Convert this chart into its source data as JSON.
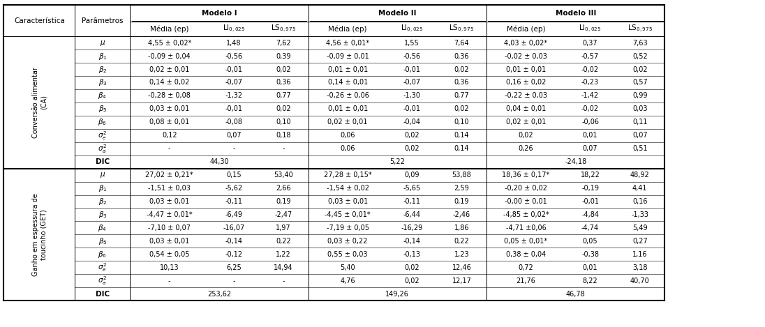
{
  "col0_header": "Característica",
  "col1_header": "Parâmetros",
  "modelo_headers": [
    "Modelo I",
    "Modelo II",
    "Modelo III"
  ],
  "sub_headers": [
    "Média (ep)",
    "LI$_{0,025}$",
    "LS$_{0,975}$"
  ],
  "section1_label": "Conversão alimentar\n(CA)",
  "section2_label": "Ganho em espessura de\ntoucinho (GET)",
  "params": [
    "$\\mu$",
    "$\\beta_1$",
    "$\\beta_2$",
    "$\\beta_3$",
    "$\\beta_4$",
    "$\\beta_5$",
    "$\\beta_6$",
    "$\\sigma^2_e$",
    "$\\sigma^2_a$"
  ],
  "section1_data": [
    [
      "4,55 ± 0,02*",
      "1,48",
      "7,62",
      "4,56 ± 0,01*",
      "1,55",
      "7,64",
      "4,03 ± 0,02*",
      "0,37",
      "7,63"
    ],
    [
      "-0,09 ± 0,04",
      "-0,56",
      "0,39",
      "-0,09 ± 0,01",
      "-0,56",
      "0,36",
      "-0,02 ± 0,03",
      "-0,57",
      "0,52"
    ],
    [
      "0,02 ± 0,01",
      "-0,01",
      "0,02",
      "0,01 ± 0,01",
      "-0,01",
      "0,02",
      "0,01 ± 0,01",
      "-0,02",
      "0,02"
    ],
    [
      "0,14 ± 0,02",
      "-0,07",
      "0,36",
      "0,14 ± 0,01",
      "-0,07",
      "0,36",
      "0,16 ± 0,02",
      "-0,23",
      "0,57"
    ],
    [
      "-0,28 ± 0,08",
      "-1,32",
      "0,77",
      "-0,26 ± 0,06",
      "-1,30",
      "0,77",
      "-0,22 ± 0,03",
      "-1,42",
      "0,99"
    ],
    [
      "0,03 ± 0,01",
      "-0,01",
      "0,02",
      "0,01 ± 0,01",
      "-0,01",
      "0,02",
      "0,04 ± 0,01",
      "-0,02",
      "0,03"
    ],
    [
      "0,08 ± 0,01",
      "-0,08",
      "0,10",
      "0,02 ± 0,01",
      "-0,04",
      "0,10",
      "0,02 ± 0,01",
      "-0,06",
      "0,11"
    ],
    [
      "0,12",
      "0,07",
      "0,18",
      "0,06",
      "0,02",
      "0,14",
      "0,02",
      "0,01",
      "0,07"
    ],
    [
      "-",
      "-",
      "-",
      "0,06",
      "0,02",
      "0,14",
      "0,26",
      "0,07",
      "0,51"
    ]
  ],
  "section1_dic": [
    "44,30",
    "5,22",
    "-24,18"
  ],
  "section2_data": [
    [
      "27,02 ± 0,21*",
      "0,15",
      "53,40",
      "27,28 ± 0,15*",
      "0,09",
      "53,88",
      "18,36 ± 0,17*",
      "18,22",
      "48,92"
    ],
    [
      "-1,51 ± 0,03",
      "-5,62",
      "2,66",
      "-1,54 ± 0,02",
      "-5,65",
      "2,59",
      "-0,20 ± 0,02",
      "-0,19",
      "4,41"
    ],
    [
      "0,03 ± 0,01",
      "-0,11",
      "0,19",
      "0,03 ± 0,01",
      "-0,11",
      "0,19",
      "-0,00 ± 0,01",
      "-0,01",
      "0,16"
    ],
    [
      "-4,47 ± 0,01*",
      "-6,49",
      "-2,47",
      "-4,45 ± 0,01*",
      "-6,44",
      "-2,46",
      "-4,85 ± 0,02*",
      "-4,84",
      "-1,33"
    ],
    [
      "-7,10 ± 0,07",
      "-16,07",
      "1,97",
      "-7,19 ± 0,05",
      "-16,29",
      "1,86",
      "-4,71 ±0,06",
      "-4,74",
      "5,49"
    ],
    [
      "0,03 ± 0,01",
      "-0,14",
      "0,22",
      "0,03 ± 0,22",
      "-0,14",
      "0,22",
      "0,05 ± 0,01*",
      "0,05",
      "0,27"
    ],
    [
      "0,54 ± 0,05",
      "-0,12",
      "1,22",
      "0,55 ± 0,03",
      "-0,13",
      "1,23",
      "0,38 ± 0,04",
      "-0,38",
      "1,16"
    ],
    [
      "10,13",
      "6,25",
      "14,94",
      "5,40",
      "0,02",
      "12,46",
      "0,72",
      "0,01",
      "3,18"
    ],
    [
      "-",
      "-",
      "-",
      "4,76",
      "0,02",
      "12,17",
      "21,76",
      "8,22",
      "40,70"
    ]
  ],
  "section2_dic": [
    "253,62",
    "149,26",
    "46,78"
  ],
  "line_color": "black",
  "lw_thick": 1.5,
  "lw_thin": 0.7,
  "lw_row": 0.4,
  "fs_header": 7.5,
  "fs_data": 7.0,
  "fs_param": 7.5,
  "fs_section": 7.0
}
